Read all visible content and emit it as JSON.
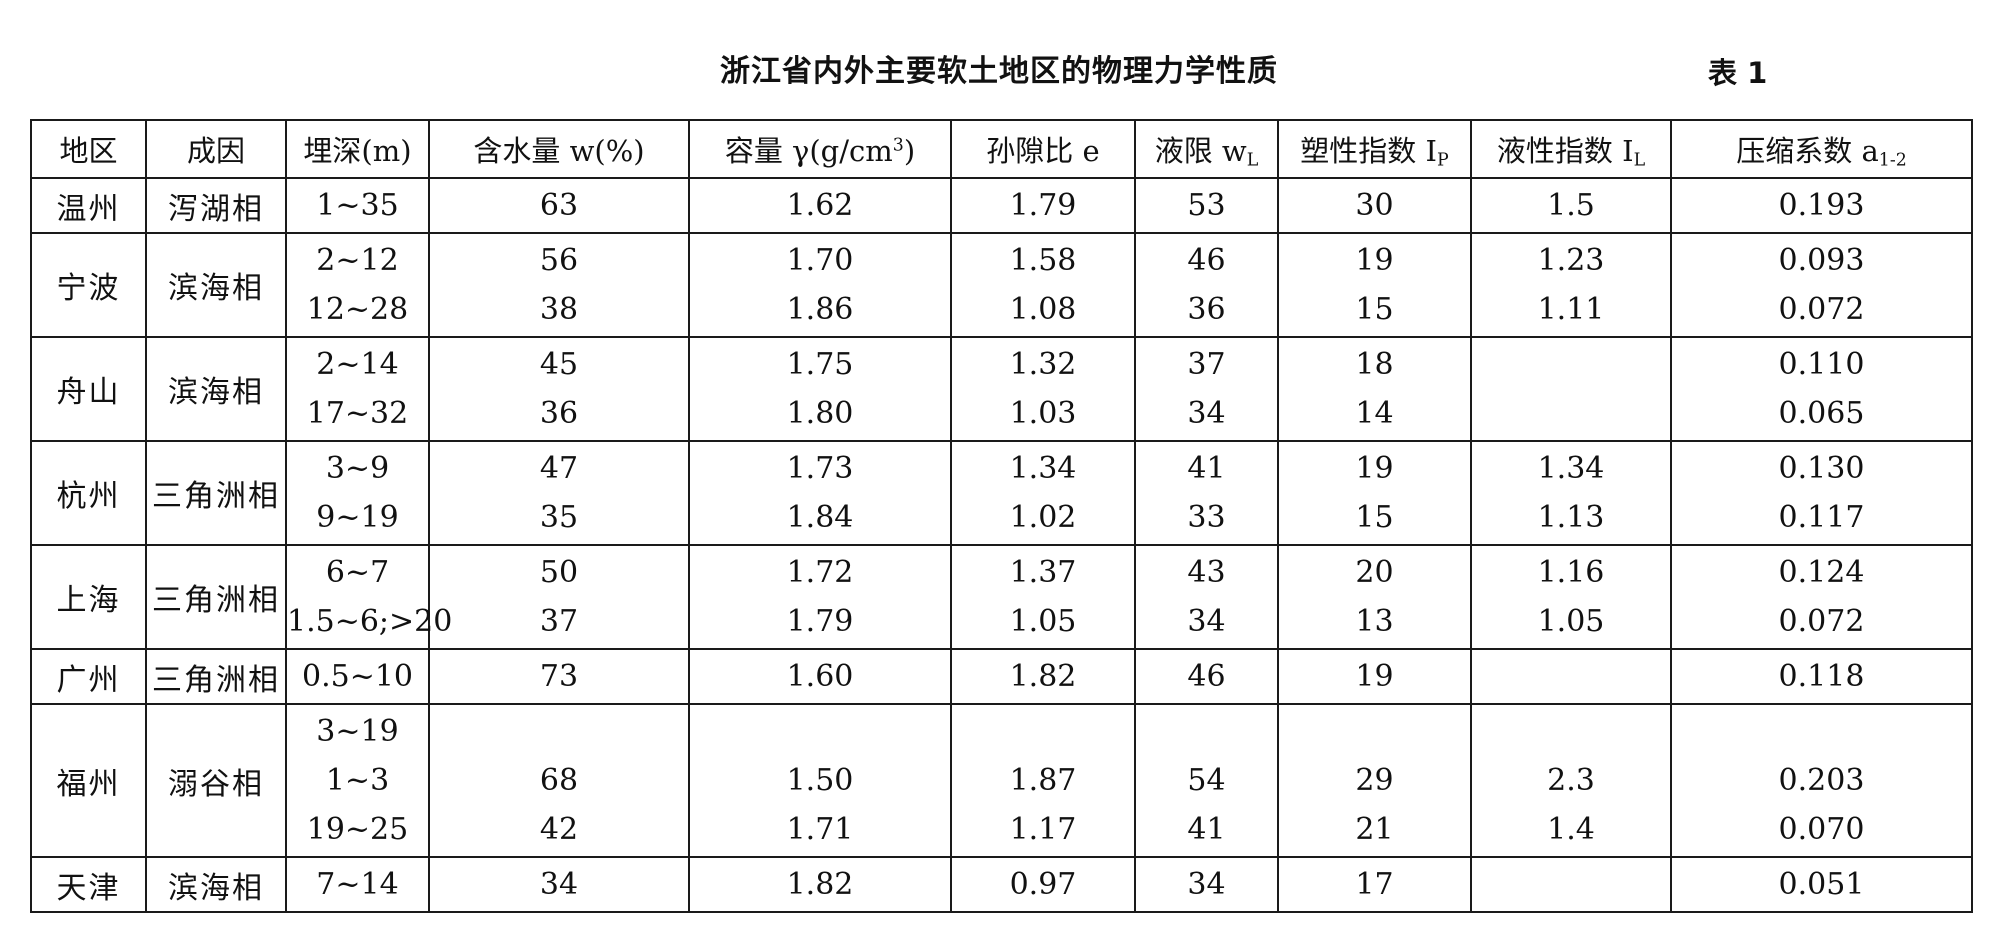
{
  "document": {
    "title": "浙江省内外主要软土地区的物理力学性质",
    "table_label": "表 1"
  },
  "table": {
    "headers": [
      {
        "text": "地区",
        "sub": "",
        "sup": "",
        "tail": ""
      },
      {
        "text": "成因",
        "sub": "",
        "sup": "",
        "tail": ""
      },
      {
        "text": "埋深(m)",
        "sub": "",
        "sup": "",
        "tail": ""
      },
      {
        "text": "含水量 w(%)",
        "sub": "",
        "sup": "",
        "tail": ""
      },
      {
        "text": "容量 γ(g/cm",
        "sub": "",
        "sup": "3",
        "tail": ")"
      },
      {
        "text": "孙隙比 e",
        "sub": "",
        "sup": "",
        "tail": ""
      },
      {
        "text": "液限 w",
        "sub": "L",
        "sup": "",
        "tail": ""
      },
      {
        "text": "塑性指数 I",
        "sub": "P",
        "sup": "",
        "tail": ""
      },
      {
        "text": "液性指数 I",
        "sub": "L",
        "sup": "",
        "tail": ""
      },
      {
        "text": "压缩系数 a",
        "sub": "1-2",
        "sup": "",
        "tail": ""
      }
    ],
    "rows": [
      {
        "region": "温州",
        "origin": "泻湖相",
        "depth": [
          "1~35"
        ],
        "water_content": [
          "63"
        ],
        "unit_weight": [
          "1.62"
        ],
        "void_ratio": [
          "1.79"
        ],
        "liquid_limit": [
          "53"
        ],
        "plasticity_index": [
          "30"
        ],
        "liquidity_index": [
          "1.5"
        ],
        "compression_coef": [
          "0.193"
        ]
      },
      {
        "region": "宁波",
        "origin": "滨海相",
        "depth": [
          "2~12",
          "12~28"
        ],
        "water_content": [
          "56",
          "38"
        ],
        "unit_weight": [
          "1.70",
          "1.86"
        ],
        "void_ratio": [
          "1.58",
          "1.08"
        ],
        "liquid_limit": [
          "46",
          "36"
        ],
        "plasticity_index": [
          "19",
          "15"
        ],
        "liquidity_index": [
          "1.23",
          "1.11"
        ],
        "compression_coef": [
          "0.093",
          "0.072"
        ]
      },
      {
        "region": "舟山",
        "origin": "滨海相",
        "depth": [
          "2~14",
          "17~32"
        ],
        "water_content": [
          "45",
          "36"
        ],
        "unit_weight": [
          "1.75",
          "1.80"
        ],
        "void_ratio": [
          "1.32",
          "1.03"
        ],
        "liquid_limit": [
          "37",
          "34"
        ],
        "plasticity_index": [
          "18",
          "14"
        ],
        "liquidity_index": [
          "",
          ""
        ],
        "compression_coef": [
          "0.110",
          "0.065"
        ]
      },
      {
        "region": "杭州",
        "origin": "三角洲相",
        "depth": [
          "3~9",
          "9~19"
        ],
        "water_content": [
          "47",
          "35"
        ],
        "unit_weight": [
          "1.73",
          "1.84"
        ],
        "void_ratio": [
          "1.34",
          "1.02"
        ],
        "liquid_limit": [
          "41",
          "33"
        ],
        "plasticity_index": [
          "19",
          "15"
        ],
        "liquidity_index": [
          "1.34",
          "1.13"
        ],
        "compression_coef": [
          "0.130",
          "0.117"
        ]
      },
      {
        "region": "上海",
        "origin": "三角洲相",
        "depth": [
          "6~7",
          "1.5~6;>20"
        ],
        "water_content": [
          "50",
          "37"
        ],
        "unit_weight": [
          "1.72",
          "1.79"
        ],
        "void_ratio": [
          "1.37",
          "1.05"
        ],
        "liquid_limit": [
          "43",
          "34"
        ],
        "plasticity_index": [
          "20",
          "13"
        ],
        "liquidity_index": [
          "1.16",
          "1.05"
        ],
        "compression_coef": [
          "0.124",
          "0.072"
        ]
      },
      {
        "region": "广州",
        "origin": "三角洲相",
        "depth": [
          "0.5~10"
        ],
        "water_content": [
          "73"
        ],
        "unit_weight": [
          "1.60"
        ],
        "void_ratio": [
          "1.82"
        ],
        "liquid_limit": [
          "46"
        ],
        "plasticity_index": [
          "19"
        ],
        "liquidity_index": [
          ""
        ],
        "compression_coef": [
          "0.118"
        ]
      },
      {
        "region": "福州",
        "origin": "溺谷相",
        "depth": [
          "3~19",
          "1~3",
          "19~25"
        ],
        "water_content": [
          "",
          "68",
          "42"
        ],
        "unit_weight": [
          "",
          "1.50",
          "1.71"
        ],
        "void_ratio": [
          "",
          "1.87",
          "1.17"
        ],
        "liquid_limit": [
          "",
          "54",
          "41"
        ],
        "plasticity_index": [
          "",
          "29",
          "21"
        ],
        "liquidity_index": [
          "",
          "2.3",
          "1.4"
        ],
        "compression_coef": [
          "",
          "0.203",
          "0.070"
        ]
      },
      {
        "region": "天津",
        "origin": "滨海相",
        "depth": [
          "7~14"
        ],
        "water_content": [
          "34"
        ],
        "unit_weight": [
          "1.82"
        ],
        "void_ratio": [
          "0.97"
        ],
        "liquid_limit": [
          "34"
        ],
        "plasticity_index": [
          "17"
        ],
        "liquidity_index": [
          ""
        ],
        "compression_coef": [
          "0.051"
        ]
      }
    ]
  }
}
